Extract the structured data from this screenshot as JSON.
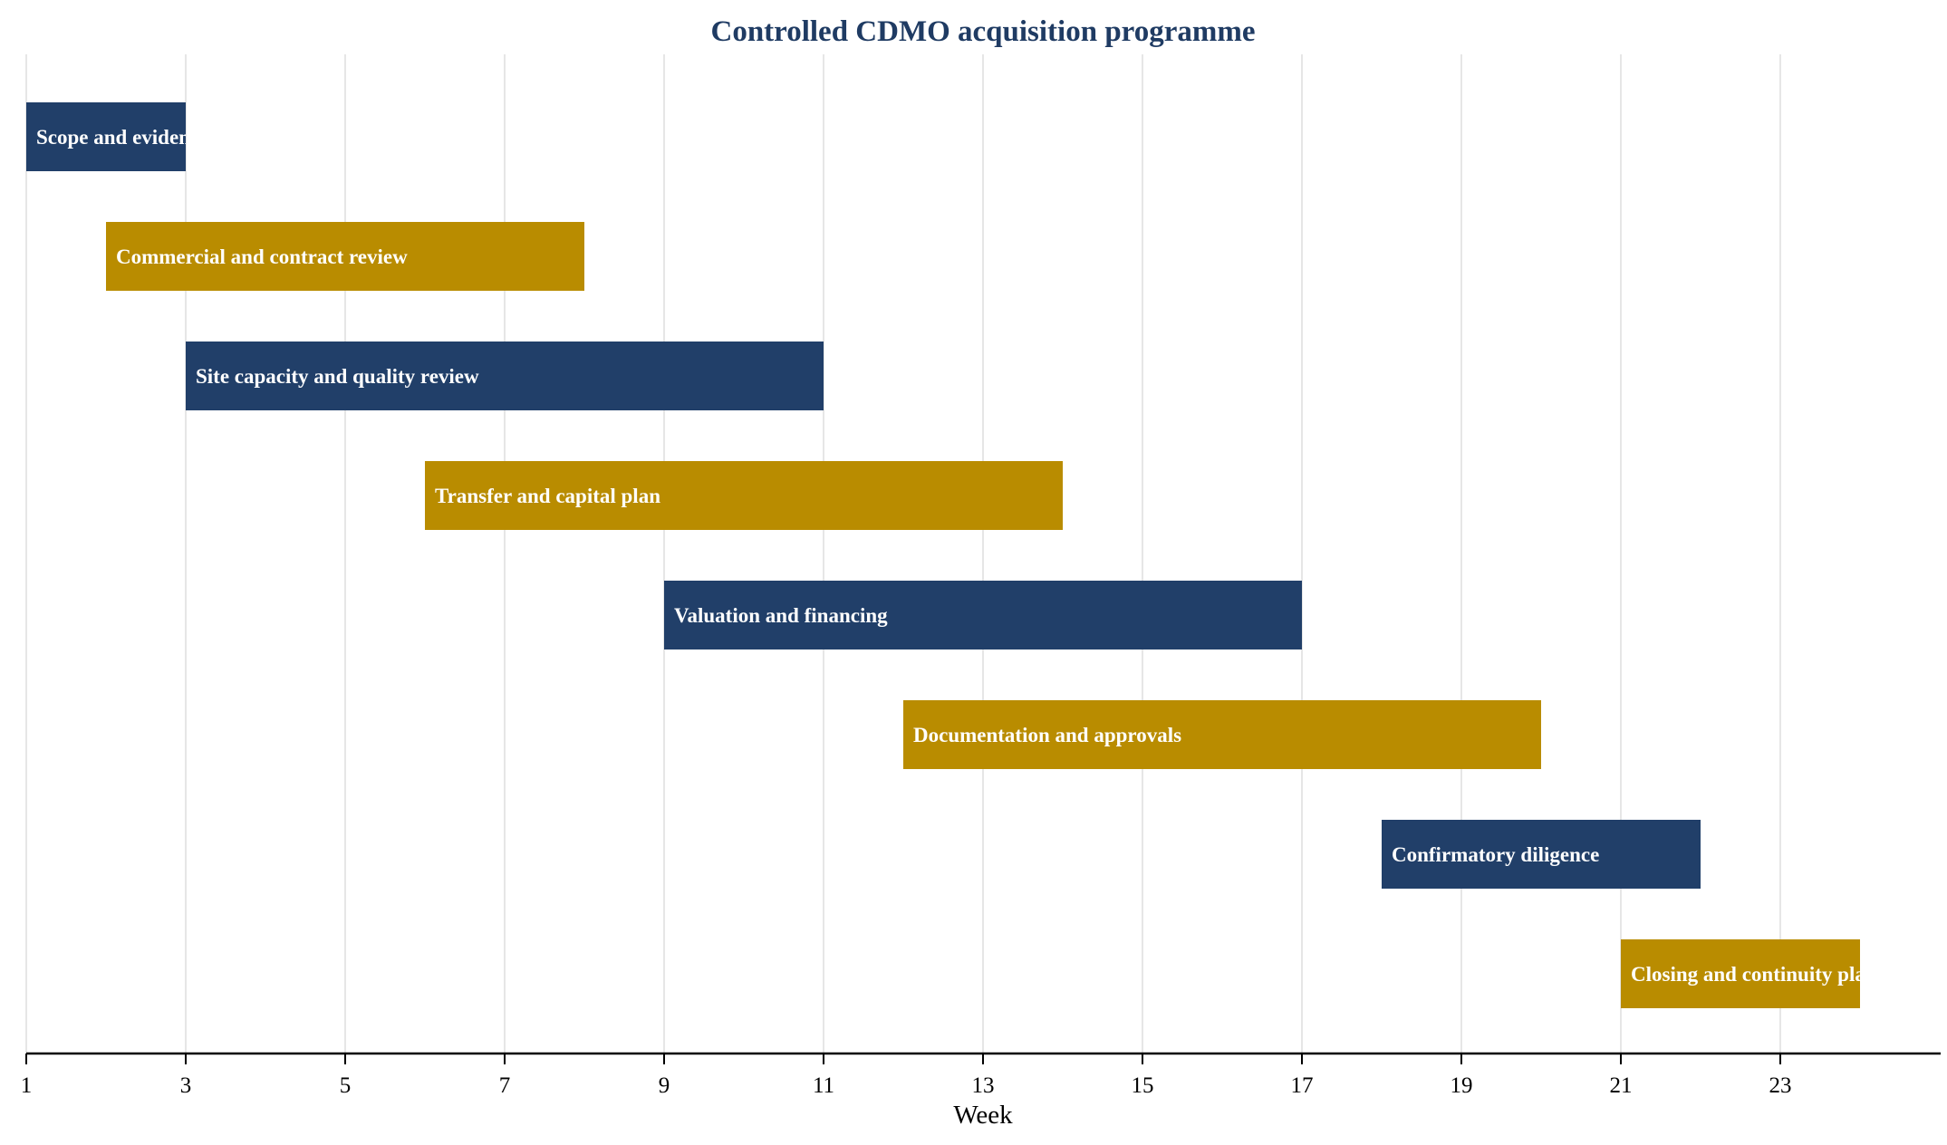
{
  "chart_data": {
    "type": "bar",
    "orientation": "horizontal-gantt",
    "title": "Controlled CDMO acquisition programme",
    "xlabel": "Week",
    "ylabel": "",
    "xlim": [
      1,
      25
    ],
    "xticks": [
      1,
      3,
      5,
      7,
      9,
      11,
      13,
      15,
      17,
      19,
      21,
      23
    ],
    "grid": true,
    "colors": {
      "navy": "#213f69",
      "gold": "#b98c00",
      "title": "#1f3b63"
    },
    "tasks": [
      {
        "name": "Scope and evidence",
        "start": 1,
        "end": 3,
        "color": "navy"
      },
      {
        "name": "Commercial and contract review",
        "start": 2,
        "end": 8,
        "color": "gold"
      },
      {
        "name": "Site capacity and quality review",
        "start": 3,
        "end": 11,
        "color": "navy"
      },
      {
        "name": "Transfer and capital plan",
        "start": 6,
        "end": 14,
        "color": "gold"
      },
      {
        "name": "Valuation and financing",
        "start": 9,
        "end": 17,
        "color": "navy"
      },
      {
        "name": "Documentation and approvals",
        "start": 12,
        "end": 20,
        "color": "gold"
      },
      {
        "name": "Confirmatory diligence",
        "start": 18,
        "end": 22,
        "color": "navy"
      },
      {
        "name": "Closing and continuity plan",
        "start": 21,
        "end": 24,
        "color": "gold"
      }
    ]
  }
}
